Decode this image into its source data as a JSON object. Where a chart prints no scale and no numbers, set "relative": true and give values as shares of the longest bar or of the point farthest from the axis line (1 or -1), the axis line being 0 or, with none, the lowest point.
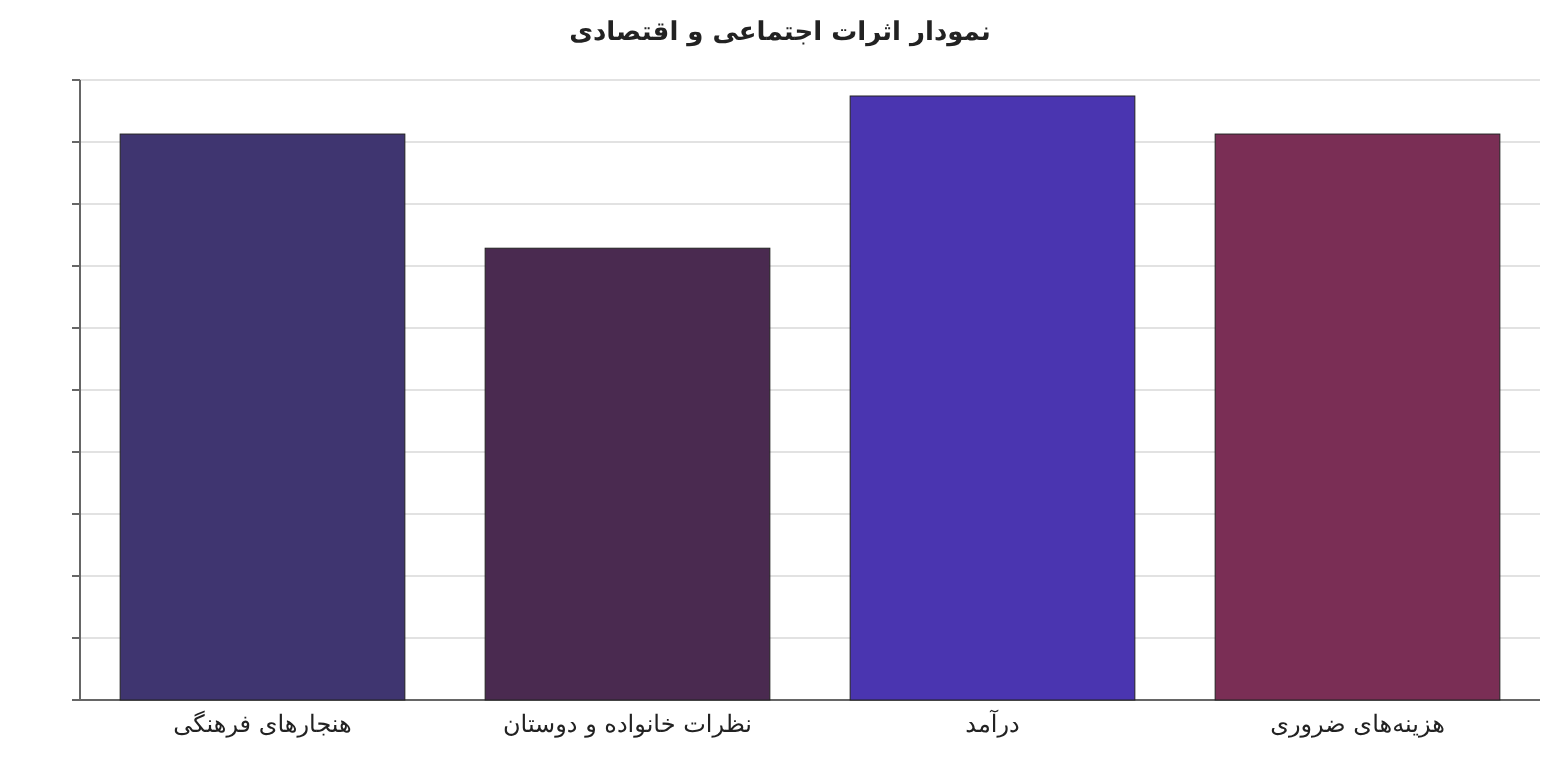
{
  "chart_data": {
    "type": "bar",
    "title": "نمودار اثرات اجتماعی و اقتصادی",
    "categories": [
      "هنجارهای فرهنگی",
      "نظرات خانواده و دوستان",
      "درآمد",
      "هزینه‌های ضروری"
    ],
    "values": [
      0.937,
      0.748,
      1,
      0.937
    ],
    "colors": [
      "#3f3570",
      "#4a2a50",
      "#4a35b0",
      "#7a2e55"
    ],
    "relative": true,
    "grid": true
  }
}
